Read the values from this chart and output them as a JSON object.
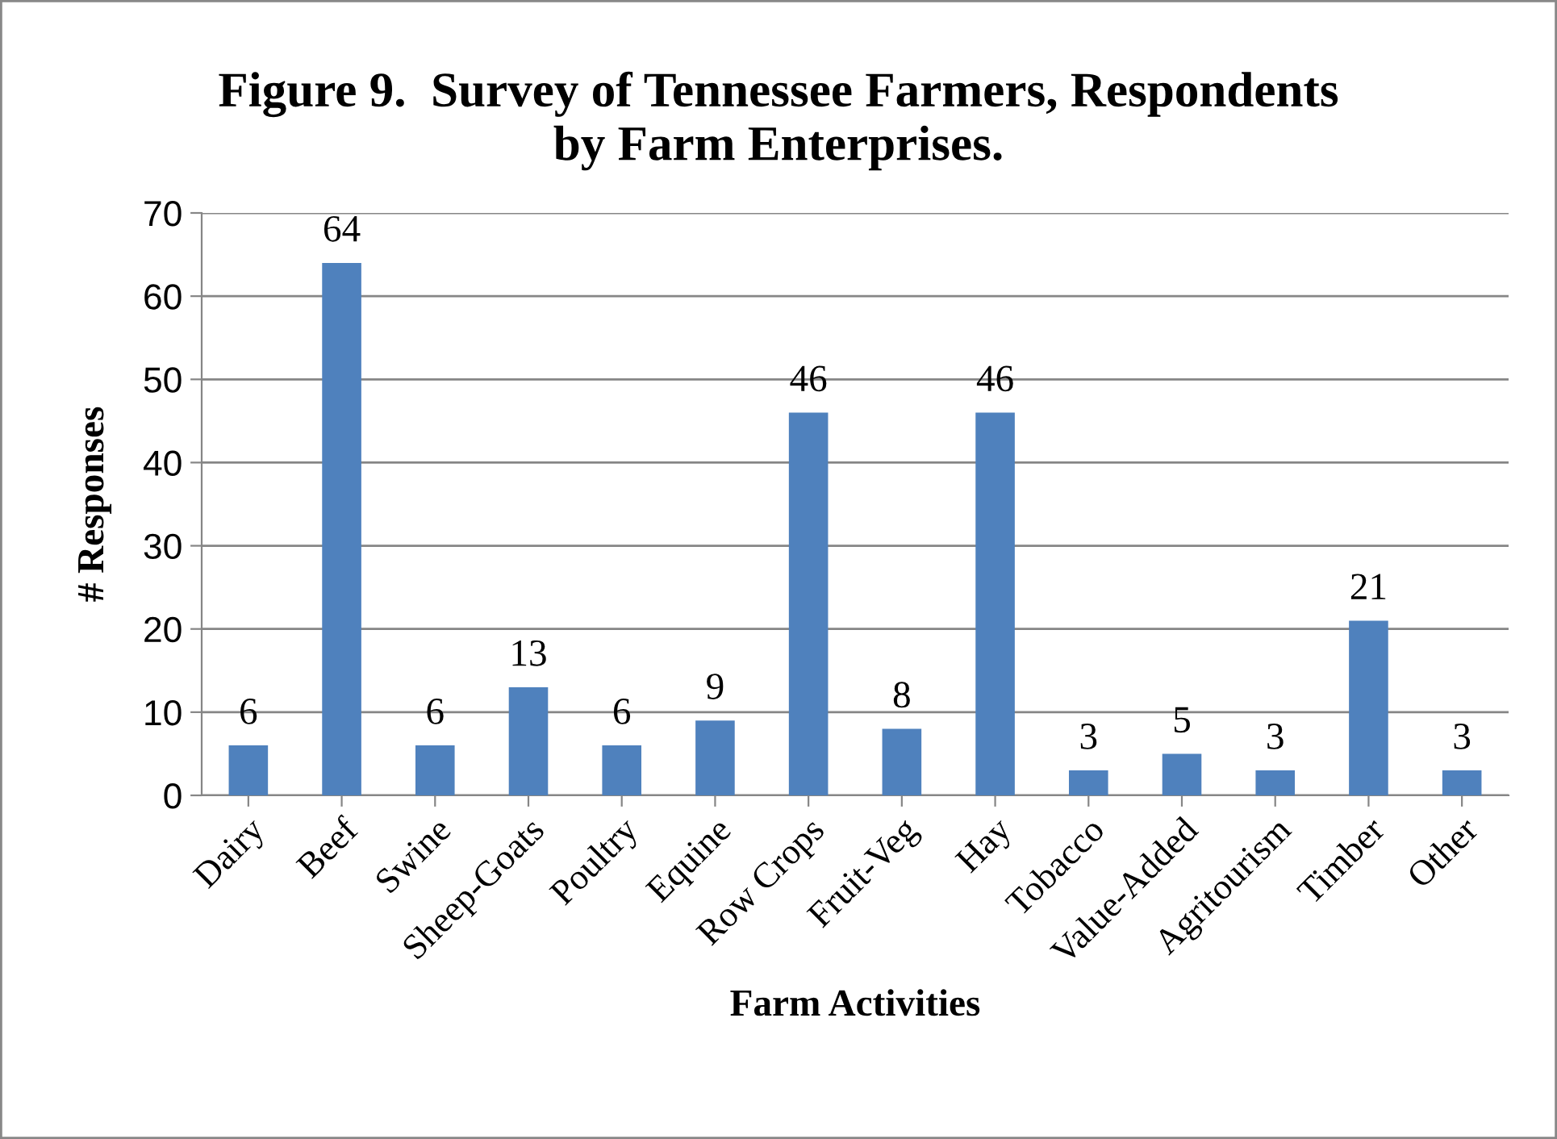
{
  "chart_data": {
    "type": "bar",
    "title": "Figure 9.  Survey of Tennessee Farmers, Respondents\nby Farm Enterprises.",
    "xlabel": "Farm Activities",
    "ylabel": "# Responses",
    "categories": [
      "Dairy",
      "Beef",
      "Swine",
      "Sheep-Goats",
      "Poultry",
      "Equine",
      "Row Crops",
      "Fruit-Veg",
      "Hay",
      "Tobacco",
      "Value-Added",
      "Agritourism",
      "Timber",
      "Other"
    ],
    "values": [
      6,
      64,
      6,
      13,
      6,
      9,
      46,
      8,
      46,
      3,
      5,
      3,
      21,
      3
    ],
    "color": "#4f81bd",
    "ylim": [
      0,
      70
    ],
    "yticks": [
      0,
      10,
      20,
      30,
      40,
      50,
      60,
      70
    ],
    "grid": "y",
    "data_labels": true,
    "legend": false
  }
}
